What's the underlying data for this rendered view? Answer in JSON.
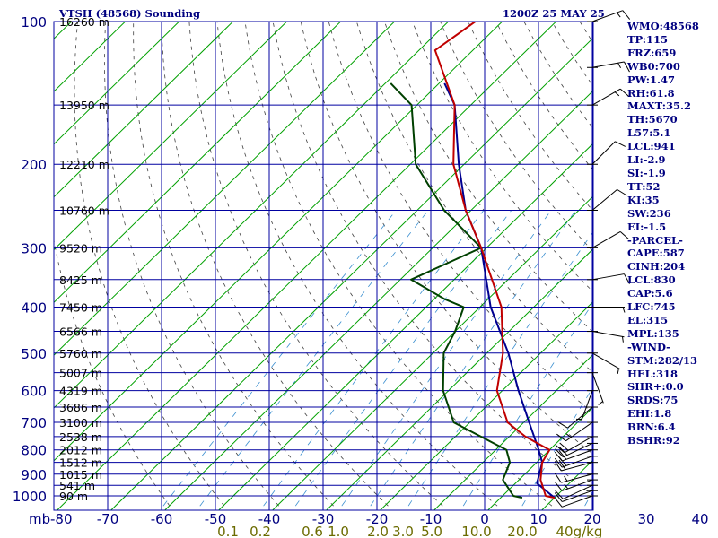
{
  "header": {
    "station": "VTSH (48568) Sounding",
    "time": "1200Z 25 MAY 25"
  },
  "indices": [
    "WMO:48568",
    "TP:115",
    "FRZ:659",
    "WB0:700",
    "PW:1.47",
    "RH:61.8",
    "MAXT:35.2",
    "TH:5670",
    "L57:5.1",
    "LCL:941",
    "LI:-2.9",
    "SI:-1.9",
    "TT:52",
    "KI:35",
    "SW:236",
    "EI:-1.5",
    "-PARCEL-",
    "CAPE:587",
    "CINH:204",
    "LCL:830",
    "CAP:5.6",
    "LFC:745",
    "EL:315",
    "MPL:135",
    "-WIND-",
    "STM:282/13",
    "HEL:318",
    "SHR+:0.0",
    "SRDS:75",
    "EHI:1.8",
    "BRN:6.4",
    "BSHR:92"
  ],
  "colors": {
    "grid": "#0000a0",
    "isotherm": "#00a000",
    "dry_adiabat": "#404040",
    "mixing_ratio": "#3a8fd0",
    "temperature": "#c00000",
    "dewpoint": "#004000",
    "parcel": "#000090",
    "pressure_label": "#000080",
    "mixing_label": "#6b6b00"
  },
  "chart_data": {
    "type": "skew-t",
    "pressure_axis_label": "mb",
    "pressure_levels": [
      100,
      200,
      300,
      400,
      500,
      600,
      700,
      800,
      900,
      1000
    ],
    "extra_pressure_lines": [
      150,
      250,
      350,
      450,
      550,
      650,
      750,
      850,
      950
    ],
    "height_labels": [
      {
        "p": 100,
        "label": "16260 m"
      },
      {
        "p": 150,
        "label": "13950 m"
      },
      {
        "p": 200,
        "label": "12210 m"
      },
      {
        "p": 250,
        "label": "10760 m"
      },
      {
        "p": 300,
        "label": "9520 m"
      },
      {
        "p": 350,
        "label": "8425 m"
      },
      {
        "p": 400,
        "label": "7450 m"
      },
      {
        "p": 450,
        "label": "6566 m"
      },
      {
        "p": 500,
        "label": "5760 m"
      },
      {
        "p": 550,
        "label": "5007 m"
      },
      {
        "p": 600,
        "label": "4319 m"
      },
      {
        "p": 650,
        "label": "3686 m"
      },
      {
        "p": 700,
        "label": "3100 m"
      },
      {
        "p": 750,
        "label": "2538 m"
      },
      {
        "p": 800,
        "label": "2012 m"
      },
      {
        "p": 850,
        "label": "1512 m"
      },
      {
        "p": 900,
        "label": "1015 m"
      },
      {
        "p": 950,
        "label": "541 m"
      },
      {
        "p": 1000,
        "label": "90 m"
      }
    ],
    "temperature_ticks": [
      -80,
      -70,
      -60,
      -50,
      -40,
      -30,
      -20,
      -10,
      0,
      10,
      20,
      30,
      40
    ],
    "mixing_ratio_labels": [
      "0.1",
      "0.2",
      "0.6",
      "1.0",
      "2.0",
      "3.0",
      "5.0",
      "10.0",
      "20.0",
      "40",
      "g/kg"
    ],
    "temperature_profile": [
      {
        "p": 1009,
        "t": 30
      },
      {
        "p": 1000,
        "t": 28
      },
      {
        "p": 925,
        "t": 24
      },
      {
        "p": 850,
        "t": 21
      },
      {
        "p": 800,
        "t": 20
      },
      {
        "p": 750,
        "t": 13
      },
      {
        "p": 700,
        "t": 7
      },
      {
        "p": 600,
        "t": -1
      },
      {
        "p": 500,
        "t": -7
      },
      {
        "p": 400,
        "t": -16
      },
      {
        "p": 300,
        "t": -31
      },
      {
        "p": 250,
        "t": -41
      },
      {
        "p": 200,
        "t": -52
      },
      {
        "p": 150,
        "t": -63
      },
      {
        "p": 115,
        "t": -77
      },
      {
        "p": 100,
        "t": -75
      }
    ],
    "dewpoint_profile": [
      {
        "p": 1009,
        "t": 24
      },
      {
        "p": 1000,
        "t": 22
      },
      {
        "p": 925,
        "t": 17
      },
      {
        "p": 850,
        "t": 15
      },
      {
        "p": 800,
        "t": 12
      },
      {
        "p": 700,
        "t": -3
      },
      {
        "p": 600,
        "t": -11
      },
      {
        "p": 500,
        "t": -18
      },
      {
        "p": 450,
        "t": -20
      },
      {
        "p": 400,
        "t": -23
      },
      {
        "p": 385,
        "t": -28
      },
      {
        "p": 350,
        "t": -38
      },
      {
        "p": 300,
        "t": -31
      },
      {
        "p": 250,
        "t": -45
      },
      {
        "p": 200,
        "t": -59
      },
      {
        "p": 150,
        "t": -71
      },
      {
        "p": 135,
        "t": -79
      }
    ],
    "parcel_profile": [
      {
        "p": 1009,
        "t": 30
      },
      {
        "p": 941,
        "t": 24
      },
      {
        "p": 850,
        "t": 21
      },
      {
        "p": 800,
        "t": 18
      },
      {
        "p": 700,
        "t": 11
      },
      {
        "p": 600,
        "t": 3
      },
      {
        "p": 500,
        "t": -6
      },
      {
        "p": 400,
        "t": -18
      },
      {
        "p": 300,
        "t": -31
      },
      {
        "p": 250,
        "t": -41
      },
      {
        "p": 200,
        "t": -51
      },
      {
        "p": 150,
        "t": -63
      },
      {
        "p": 135,
        "t": -69
      }
    ],
    "wind_barbs": [
      {
        "p": 1000,
        "dir": 250,
        "spd": 10
      },
      {
        "p": 975,
        "dir": 250,
        "spd": 10
      },
      {
        "p": 950,
        "dir": 245,
        "spd": 10
      },
      {
        "p": 925,
        "dir": 250,
        "spd": 15
      },
      {
        "p": 900,
        "dir": 255,
        "spd": 15
      },
      {
        "p": 850,
        "dir": 255,
        "spd": 20
      },
      {
        "p": 825,
        "dir": 250,
        "spd": 20
      },
      {
        "p": 800,
        "dir": 250,
        "spd": 20
      },
      {
        "p": 775,
        "dir": 245,
        "spd": 20
      },
      {
        "p": 750,
        "dir": 240,
        "spd": 20
      },
      {
        "p": 700,
        "dir": 235,
        "spd": 15
      },
      {
        "p": 650,
        "dir": 230,
        "spd": 10
      },
      {
        "p": 600,
        "dir": 200,
        "spd": 5
      },
      {
        "p": 550,
        "dir": 160,
        "spd": 5
      },
      {
        "p": 500,
        "dir": 120,
        "spd": 5
      },
      {
        "p": 450,
        "dir": 100,
        "spd": 5
      },
      {
        "p": 400,
        "dir": 90,
        "spd": 5
      },
      {
        "p": 350,
        "dir": 80,
        "spd": 10
      },
      {
        "p": 300,
        "dir": 60,
        "spd": 10
      },
      {
        "p": 250,
        "dir": 50,
        "spd": 10
      },
      {
        "p": 200,
        "dir": 45,
        "spd": 10
      },
      {
        "p": 150,
        "dir": 60,
        "spd": 15
      },
      {
        "p": 125,
        "dir": 80,
        "spd": 15
      },
      {
        "p": 100,
        "dir": 70,
        "spd": 15
      }
    ]
  }
}
